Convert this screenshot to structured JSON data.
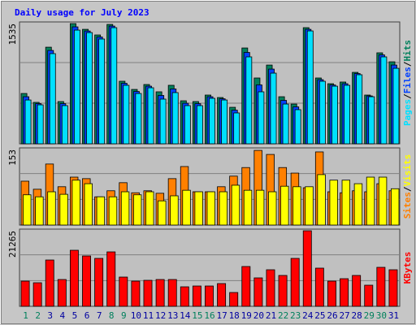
{
  "chart_data": [
    {
      "type": "bar",
      "title": "Daily usage for July 2023",
      "title_color": "#0000ff",
      "ylim": [
        0,
        1535
      ],
      "yticks": [
        1535
      ],
      "legend_separator": "/",
      "legend_reversed": true,
      "series": [
        {
          "name": "Hits",
          "color": "#00805c",
          "values": [
            634,
            522,
            1217,
            532,
            1514,
            1442,
            1371,
            1504,
            788,
            685,
            747,
            655,
            737,
            542,
            532,
            614,
            583,
            460,
            1207,
            829,
            992,
            593,
            501,
            1463,
            829,
            757,
            778,
            900,
            614,
            1146,
            1033
          ]
        },
        {
          "name": "Files",
          "color": "#0040ff",
          "values": [
            593,
            506,
            1176,
            506,
            1473,
            1421,
            1345,
            1483,
            762,
            659,
            726,
            609,
            691,
            511,
            506,
            593,
            567,
            424,
            1151,
            742,
            941,
            547,
            465,
            1442,
            808,
            741,
            757,
            885,
            603,
            1120,
            992
          ]
        },
        {
          "name": "Pages",
          "color": "#00e0ff",
          "values": [
            552,
            491,
            1136,
            481,
            1432,
            1401,
            1320,
            1463,
            737,
            634,
            706,
            563,
            645,
            481,
            481,
            573,
            552,
            389,
            1095,
            655,
            890,
            501,
            430,
            1422,
            788,
            726,
            737,
            870,
            593,
            1095,
            951
          ]
        }
      ]
    },
    {
      "type": "bar",
      "ylim": [
        0,
        153
      ],
      "yticks": [
        153
      ],
      "legend_reversed": false,
      "series": [
        {
          "name": "Sites",
          "color": "#ff8000",
          "values": [
            87,
            71,
            121,
            76,
            95,
            92,
            56,
            68,
            84,
            64,
            68,
            63,
            92,
            116,
            66,
            66,
            76,
            97,
            114,
            148,
            140,
            114,
            103,
            74,
            145,
            66,
            64,
            68,
            66,
            82,
            68
          ]
        },
        {
          "name": "Visits",
          "color": "#ffff00",
          "values": [
            60,
            56,
            66,
            61,
            89,
            82,
            56,
            56,
            66,
            60,
            66,
            48,
            58,
            69,
            66,
            66,
            66,
            79,
            69,
            69,
            66,
            77,
            76,
            76,
            100,
            89,
            89,
            82,
            95,
            95,
            72
          ]
        }
      ]
    },
    {
      "type": "bar",
      "ylim": [
        0,
        21265
      ],
      "yticks": [
        21265
      ],
      "legend_reversed": false,
      "categories": [
        "1",
        "2",
        "3",
        "4",
        "5",
        "6",
        "7",
        "8",
        "9",
        "10",
        "11",
        "12",
        "13",
        "14",
        "15",
        "16",
        "17",
        "18",
        "19",
        "20",
        "21",
        "22",
        "23",
        "24",
        "25",
        "26",
        "27",
        "28",
        "29",
        "30",
        "31"
      ],
      "category_colors": [
        "#00805c",
        "#00805c",
        "#0000a0",
        "#0000a0",
        "#0000a0",
        "#0000a0",
        "#0000a0",
        "#00805c",
        "#00805c",
        "#0000a0",
        "#0000a0",
        "#0000a0",
        "#0000a0",
        "#0000a0",
        "#00805c",
        "#00805c",
        "#0000a0",
        "#0000a0",
        "#0000a0",
        "#0000a0",
        "#0000a0",
        "#00805c",
        "#00805c",
        "#0000a0",
        "#0000a0",
        "#0000a0",
        "#0000a0",
        "#0000a0",
        "#00805c",
        "#00805c",
        "#0000a0"
      ],
      "series": [
        {
          "name": "KBytes",
          "color": "#ff0000",
          "values": [
            6938,
            6490,
            12757,
            7385,
            15442,
            13876,
            13204,
            14995,
            8057,
            6938,
            7162,
            7385,
            7385,
            5371,
            5595,
            5595,
            6266,
            3805,
            10966,
            7833,
            10071,
            8504,
            13204,
            20813,
            10519,
            6938,
            7609,
            8504,
            5819,
            10742,
            10071
          ]
        }
      ]
    }
  ]
}
